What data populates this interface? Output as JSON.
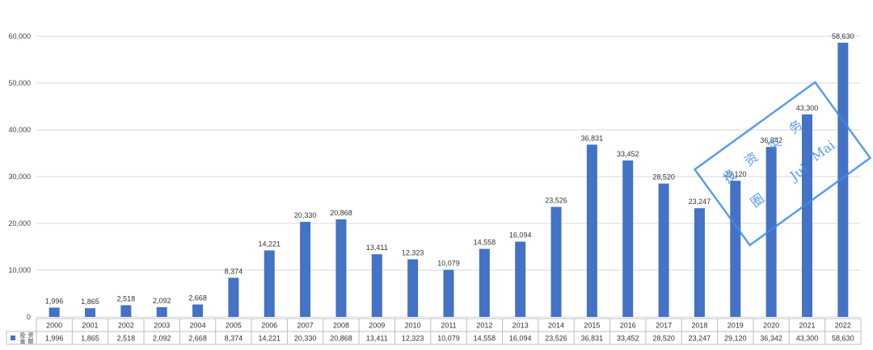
{
  "chart_data": {
    "type": "bar",
    "title": "",
    "xlabel": "",
    "ylabel": "",
    "ylim": [
      0,
      60000
    ],
    "yticks": [
      "0",
      "10,000",
      "20,000",
      "30,000",
      "40,000",
      "50,000",
      "60,000"
    ],
    "grid": true,
    "legend_position": "data-table-left",
    "categories": [
      "2000",
      "2001",
      "2002",
      "2003",
      "2004",
      "2005",
      "2006",
      "2007",
      "2008",
      "2009",
      "2010",
      "2011",
      "2012",
      "2013",
      "2014",
      "2015",
      "2016",
      "2017",
      "2018",
      "2019",
      "2020",
      "2021",
      "2022"
    ],
    "series": [
      {
        "name": "投资金额",
        "color": "#4472c4",
        "values": [
          1996,
          1865,
          2518,
          2092,
          2668,
          8374,
          14221,
          20330,
          20868,
          13411,
          12323,
          10079,
          14558,
          16094,
          23526,
          36831,
          33452,
          28520,
          23247,
          29120,
          36342,
          43300,
          58630
        ],
        "labels": [
          "1,996",
          "1,865",
          "2,518",
          "2,092",
          "2,668",
          "8,374",
          "14,221",
          "20,330",
          "20,868",
          "13,411",
          "12,323",
          "10,079",
          "14,558",
          "16,094",
          "23,526",
          "36,831",
          "33,452",
          "28,520",
          "23,247",
          "29,120",
          "36,342",
          "43,300",
          "58,630"
        ]
      }
    ]
  },
  "watermark": {
    "color": "#3d8bf0",
    "glyphs": [
      "投",
      "资",
      "实",
      "务",
      "圈",
      "Jul",
      "Mai"
    ]
  }
}
